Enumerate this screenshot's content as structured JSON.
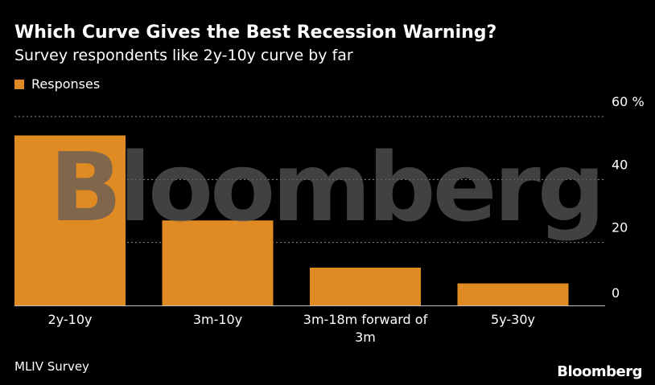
{
  "chart_data": {
    "type": "bar",
    "title": "Which Curve Gives the Best Recession Warning?",
    "subtitle": "Survey respondents like 2y-10y curve by far",
    "categories": [
      "2y-10y",
      "3m-10y",
      "3m-18m forward of 3m",
      "5y-30y"
    ],
    "category_lines": [
      [
        "2y-10y"
      ],
      [
        "3m-10y"
      ],
      [
        "3m-18m forward of",
        "3m"
      ],
      [
        "5y-30y"
      ]
    ],
    "series": [
      {
        "name": "Responses",
        "values": [
          54,
          27,
          12,
          7
        ]
      }
    ],
    "ylim": [
      0,
      60
    ],
    "yticks": [
      0,
      20,
      40,
      60
    ],
    "ytick_labels": [
      "0",
      "20",
      "40",
      "60 %"
    ],
    "ylabel": "",
    "xlabel": "",
    "grid": true,
    "legend_position": "top-left",
    "source": "MLIV Survey",
    "brand": "Bloomberg",
    "watermark": "Bloomberg",
    "colors": {
      "bar": "#E08A24",
      "background": "#000000",
      "text": "#FFFFFF",
      "grid": "#8C8C8C",
      "axis": "#BFBFBF",
      "watermark": "#5A5A5A"
    }
  }
}
